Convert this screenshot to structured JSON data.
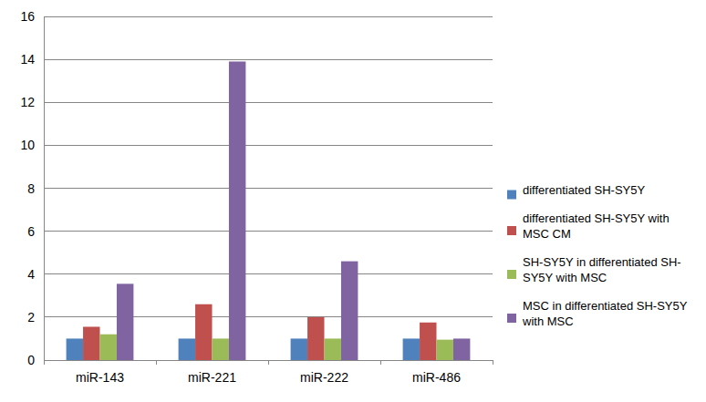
{
  "chart_data": {
    "type": "bar",
    "categories": [
      "miR-143",
      "miR-221",
      "miR-222",
      "miR-486"
    ],
    "series": [
      {
        "name": "differentiated SH-SY5Y",
        "color": "#4f81bd",
        "values": [
          1,
          1,
          1,
          1
        ]
      },
      {
        "name": "differentiated SH-SY5Y with MSC CM",
        "color": "#c0504d",
        "values": [
          1.55,
          2.6,
          2.0,
          1.75
        ]
      },
      {
        "name": "SH-SY5Y in differentiated SH-SY5Y with MSC",
        "color": "#9bbb59",
        "values": [
          1.2,
          1.0,
          1.0,
          0.95
        ]
      },
      {
        "name": "MSC in differentiated SH-SY5Y with MSC",
        "color": "#8064a2",
        "values": [
          3.55,
          13.9,
          4.6,
          1.0
        ]
      }
    ],
    "ylim": [
      0,
      16
    ],
    "yticks": [
      0,
      2,
      4,
      6,
      8,
      10,
      12,
      14,
      16
    ],
    "grid": true,
    "legend": "right"
  }
}
